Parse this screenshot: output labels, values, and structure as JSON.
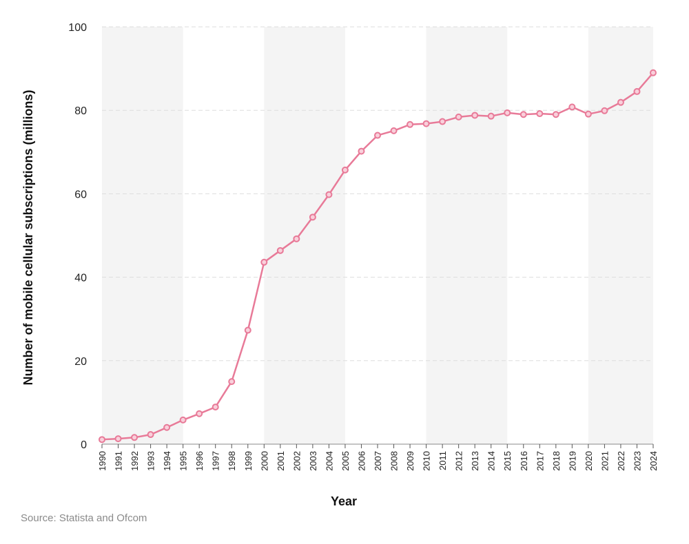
{
  "chart_data": {
    "type": "line",
    "title": "",
    "xlabel": "Year",
    "ylabel": "Number of mobile cellular subscriptions (millions)",
    "ylim": [
      0,
      100
    ],
    "yticks": [
      0,
      20,
      40,
      60,
      80,
      100
    ],
    "grid": "horizontal-dashed",
    "x": [
      "1990",
      "1991",
      "1992",
      "1993",
      "1994",
      "1995",
      "1996",
      "1997",
      "1998",
      "1999",
      "2000",
      "2001",
      "2002",
      "2003",
      "2004",
      "2005",
      "2006",
      "2007",
      "2008",
      "2009",
      "2010",
      "2011",
      "2012",
      "2013",
      "2014",
      "2015",
      "2016",
      "2017",
      "2018",
      "2019",
      "2020",
      "2021",
      "2022",
      "2023",
      "2024"
    ],
    "series": [
      {
        "name": "Mobile cellular subscriptions",
        "values": [
          1.1,
          1.3,
          1.6,
          2.3,
          4.0,
          5.8,
          7.3,
          8.9,
          15.0,
          27.3,
          43.6,
          46.4,
          49.2,
          54.4,
          59.8,
          65.7,
          70.2,
          74.0,
          75.1,
          76.6,
          76.8,
          77.3,
          78.4,
          78.8,
          78.6,
          79.4,
          79.0,
          79.2,
          79.0,
          80.8,
          79.1,
          79.9,
          81.9,
          84.5,
          89.0
        ]
      }
    ],
    "shaded_bands": [
      [
        "1990",
        "1995"
      ],
      [
        "2000",
        "2005"
      ],
      [
        "2010",
        "2015"
      ],
      [
        "2020",
        "2024"
      ]
    ],
    "colors": {
      "line": "#e87a98",
      "marker_fill": "#f9d0db",
      "band": "#f4f4f4",
      "grid": "#dddddd"
    }
  },
  "source": "Source: Statista and Ofcom"
}
